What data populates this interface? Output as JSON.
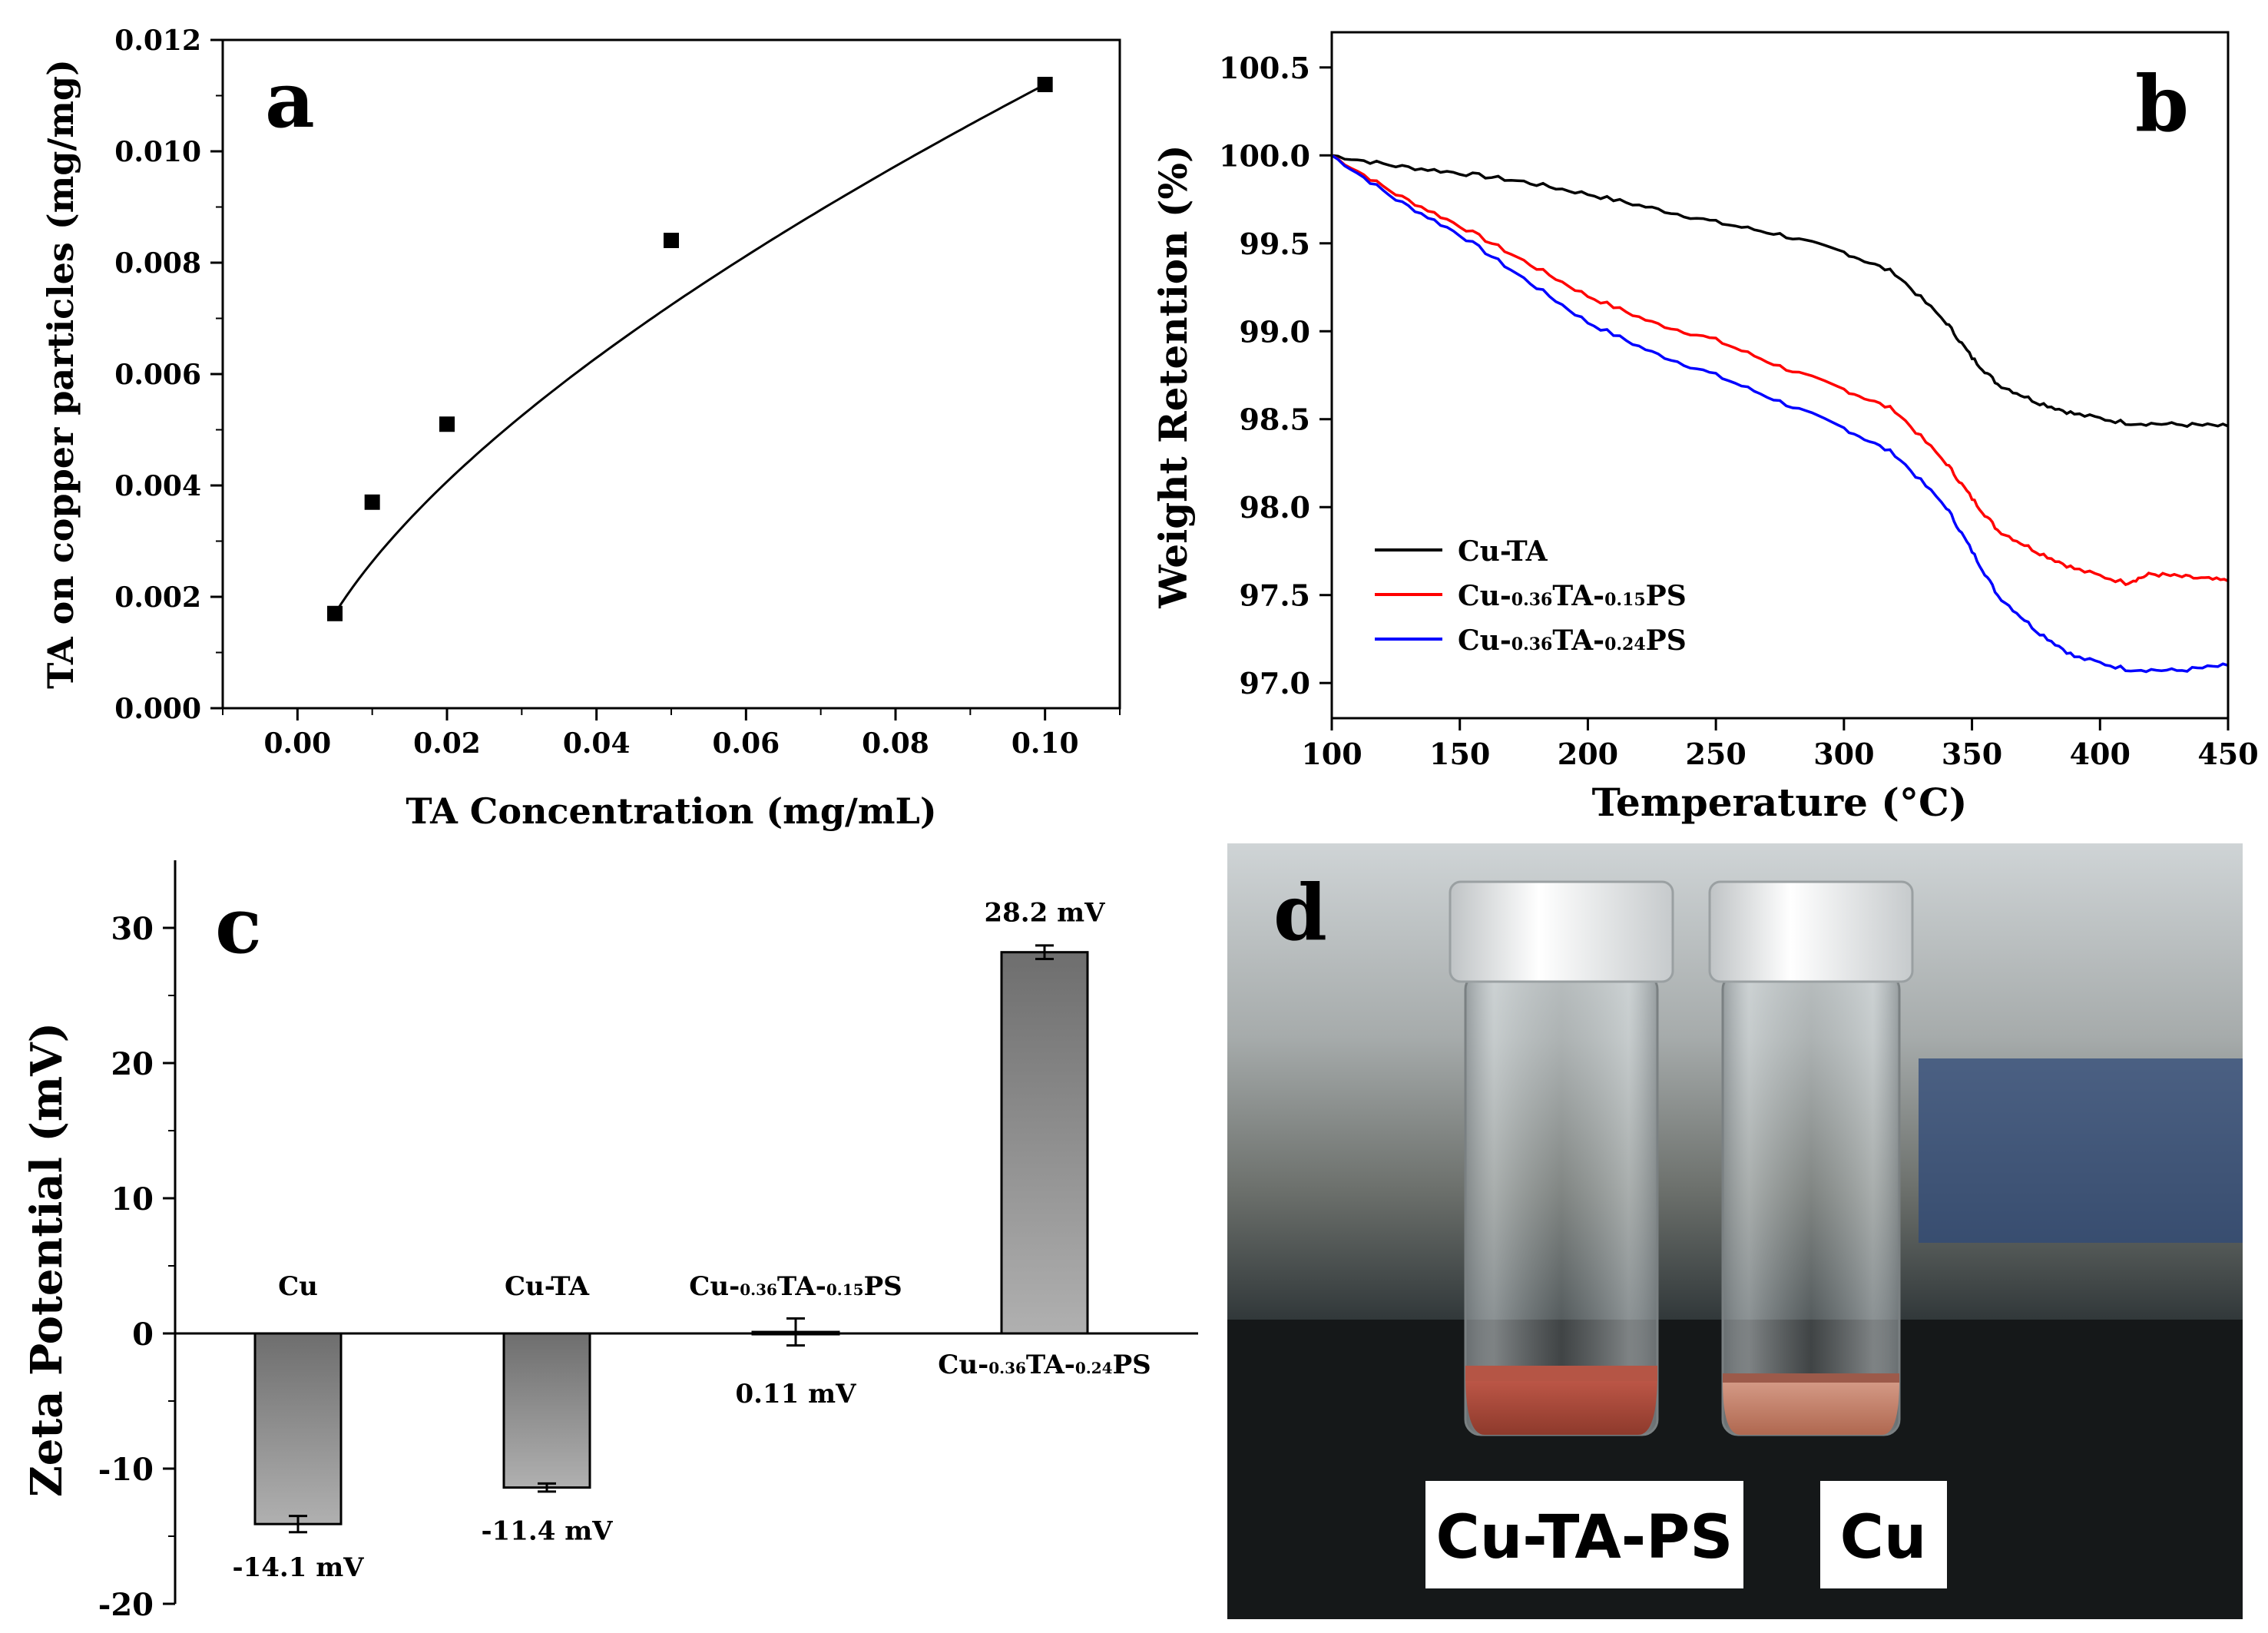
{
  "panel_labels": {
    "a": "a",
    "b": "b",
    "c": "c",
    "d": "d"
  },
  "chart_data": [
    {
      "id": "a",
      "type": "scatter",
      "xlabel": "TA Concentration (mg/mL)",
      "ylabel": "TA on copper particles (mg/mg)",
      "xlim": [
        -0.01,
        0.11
      ],
      "ylim": [
        0.0,
        0.012
      ],
      "xticks": [
        "0.00",
        "0.02",
        "0.04",
        "0.06",
        "0.08",
        "0.10"
      ],
      "yticks": [
        "0.000",
        "0.002",
        "0.004",
        "0.006",
        "0.008",
        "0.010",
        "0.012"
      ],
      "points": [
        {
          "x": 0.005,
          "y": 0.0017
        },
        {
          "x": 0.01,
          "y": 0.0037
        },
        {
          "x": 0.02,
          "y": 0.0051
        },
        {
          "x": 0.05,
          "y": 0.0084
        },
        {
          "x": 0.1,
          "y": 0.0112
        }
      ],
      "fit": "power-law fit curve through points"
    },
    {
      "id": "b",
      "type": "line",
      "xlabel": "Temperature (°C)",
      "ylabel": "Weight Retention (%)",
      "xlim": [
        100,
        450
      ],
      "ylim": [
        96.8,
        100.7
      ],
      "xticks": [
        "100",
        "150",
        "200",
        "250",
        "300",
        "350",
        "400",
        "450"
      ],
      "yticks": [
        "97.0",
        "97.5",
        "98.0",
        "98.5",
        "99.0",
        "99.5",
        "100.0",
        "100.5"
      ],
      "series": [
        {
          "name": "Cu-TA",
          "legend": {
            "base": "Cu-",
            "sub1": "",
            "mid": "TA",
            "sub2": "",
            "tail": ""
          },
          "color": "#000000",
          "x": [
            100,
            125,
            150,
            175,
            200,
            225,
            250,
            275,
            300,
            320,
            340,
            350,
            360,
            375,
            390,
            410,
            430,
            450
          ],
          "y": [
            100.0,
            99.94,
            99.9,
            99.85,
            99.78,
            99.7,
            99.62,
            99.55,
            99.45,
            99.33,
            99.05,
            98.85,
            98.7,
            98.6,
            98.53,
            98.48,
            98.47,
            98.46
          ]
        },
        {
          "name": "Cu-0.36TA-0.15PS",
          "legend": {
            "base": "Cu-",
            "sub1": "0.36",
            "mid": "TA-",
            "sub2": "0.15",
            "tail": "PS"
          },
          "color": "#ff0000",
          "x": [
            100,
            125,
            150,
            175,
            200,
            225,
            250,
            275,
            300,
            320,
            340,
            350,
            360,
            375,
            390,
            410,
            420,
            435,
            450
          ],
          "y": [
            100.0,
            99.78,
            99.6,
            99.4,
            99.2,
            99.05,
            98.95,
            98.8,
            98.67,
            98.55,
            98.25,
            98.05,
            97.87,
            97.75,
            97.65,
            97.57,
            97.62,
            97.6,
            97.58
          ]
        },
        {
          "name": "Cu-0.36TA-0.24PS",
          "legend": {
            "base": "Cu-",
            "sub1": "0.36",
            "mid": "TA-",
            "sub2": "0.24",
            "tail": "PS"
          },
          "color": "#0000ff",
          "x": [
            100,
            125,
            150,
            175,
            200,
            225,
            250,
            275,
            300,
            320,
            340,
            350,
            360,
            375,
            390,
            410,
            430,
            450
          ],
          "y": [
            100.0,
            99.75,
            99.55,
            99.3,
            99.05,
            98.88,
            98.75,
            98.6,
            98.45,
            98.3,
            98.0,
            97.75,
            97.5,
            97.3,
            97.15,
            97.08,
            97.07,
            97.1
          ]
        }
      ],
      "legend_position": "bottom-left"
    },
    {
      "id": "c",
      "type": "bar",
      "ylabel": "Zeta Potential (mV)",
      "ylim": [
        -20,
        35
      ],
      "yticks": [
        "-20",
        "-10",
        "0",
        "10",
        "20",
        "30"
      ],
      "categories": [
        {
          "base": "Cu",
          "sub1": "",
          "mid": "",
          "sub2": "",
          "tail": ""
        },
        {
          "base": "Cu-TA",
          "sub1": "",
          "mid": "",
          "sub2": "",
          "tail": ""
        },
        {
          "base": "Cu-",
          "sub1": "0.36",
          "mid": "TA-",
          "sub2": "0.15",
          "tail": "PS"
        },
        {
          "base": "Cu-",
          "sub1": "0.36",
          "mid": "TA-",
          "sub2": "0.24",
          "tail": "PS"
        }
      ],
      "values": [
        -14.1,
        -11.4,
        0.11,
        28.2
      ],
      "errors": [
        0.6,
        0.3,
        1.0,
        0.5
      ],
      "value_labels": [
        "-14.1 mV",
        "-11.4 mV",
        "0.11 mV",
        "28.2 mV"
      ]
    }
  ],
  "photo": {
    "labels": [
      "Cu-TA-PS",
      "Cu"
    ]
  }
}
